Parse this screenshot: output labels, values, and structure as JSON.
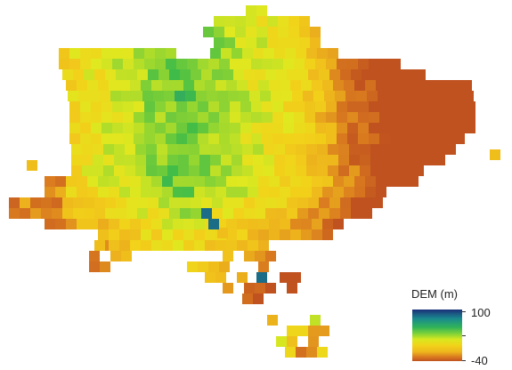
{
  "legend": {
    "title": "DEM (m)",
    "max_label": "100",
    "min_label": "-40",
    "max_value": 100,
    "min_value": -40
  },
  "colors": {
    "high": "#1b2f78",
    "upper": "#2fb25a",
    "mid": "#d9e81f",
    "low": "#eeb61c",
    "lowest": "#c0521f"
  }
}
